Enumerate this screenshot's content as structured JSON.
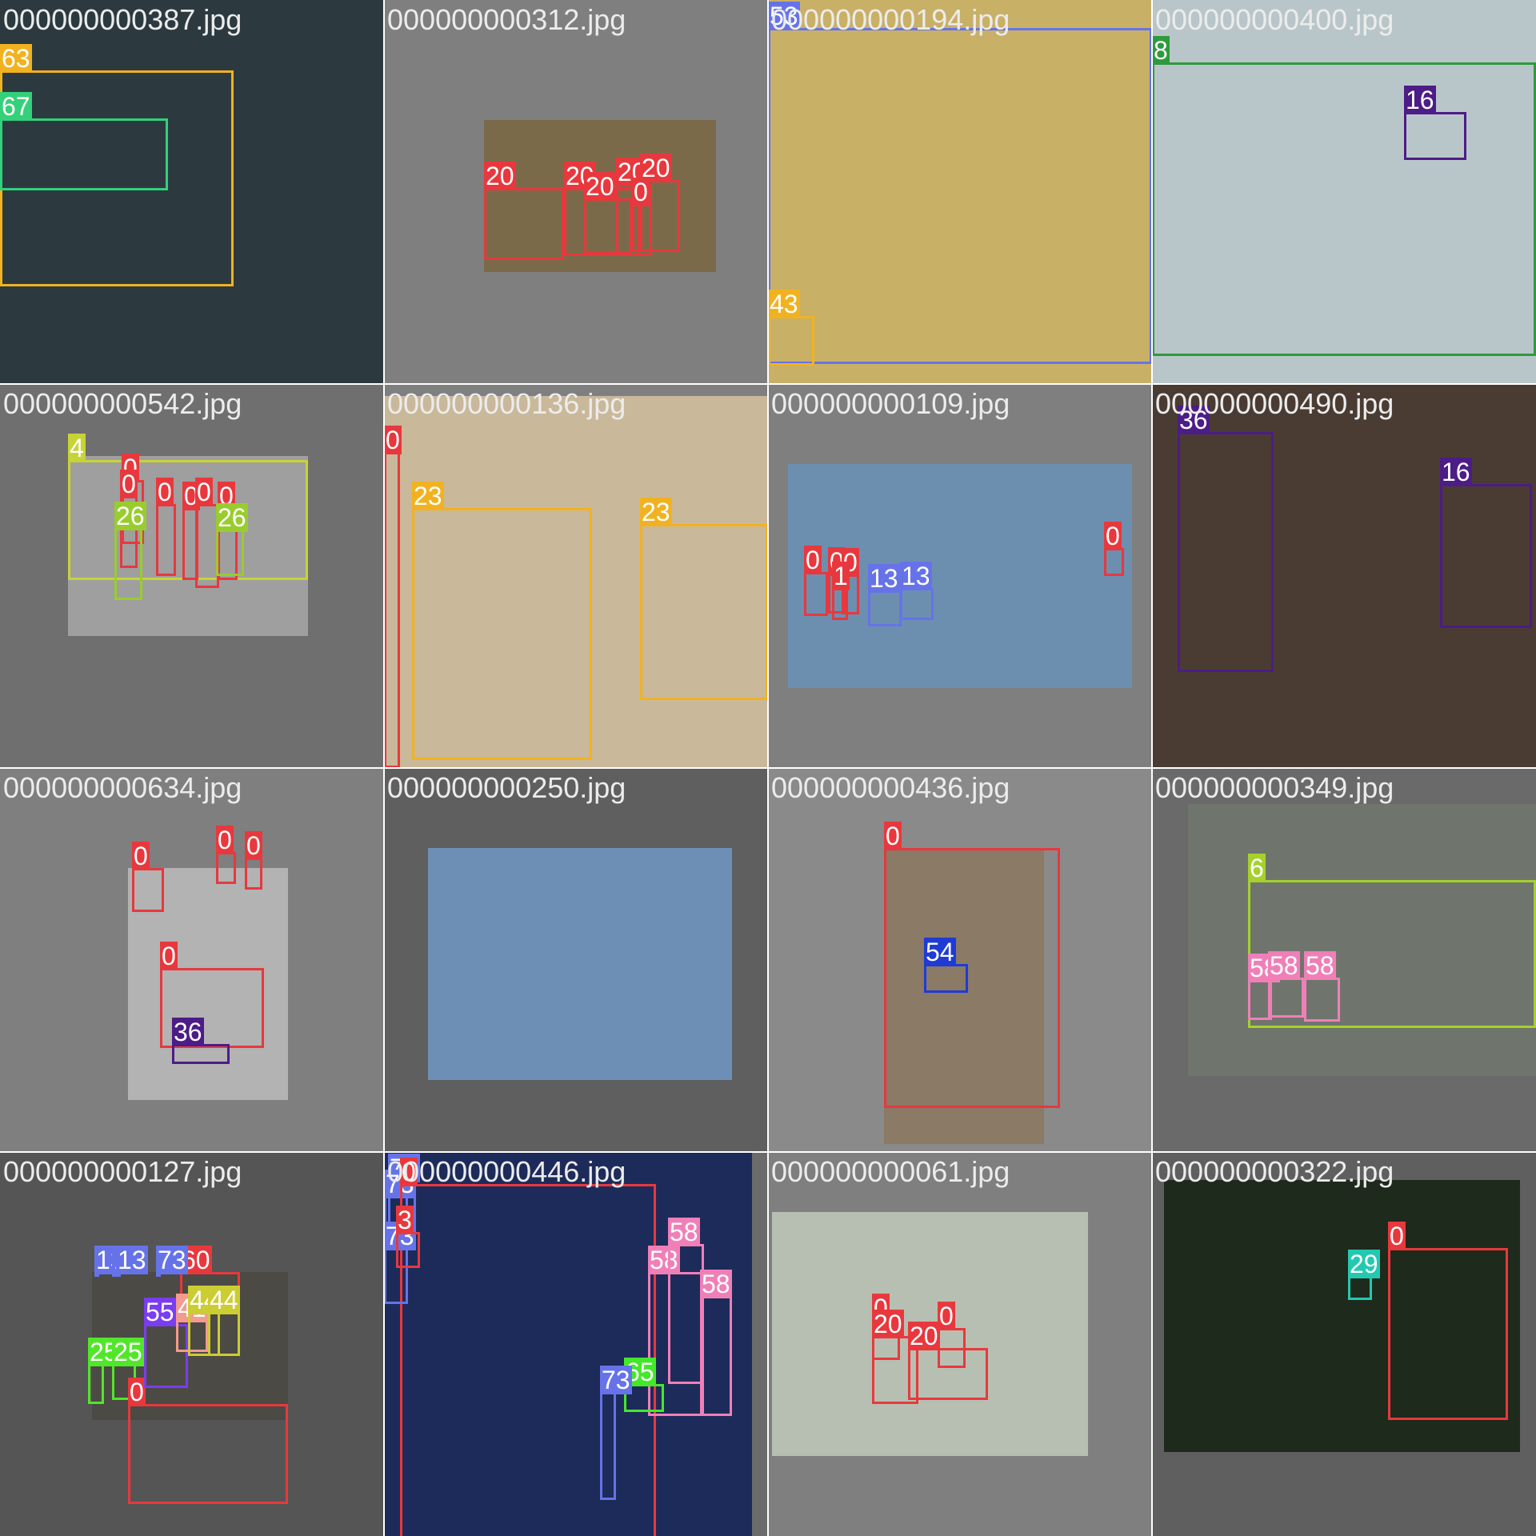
{
  "title": "",
  "colors": {
    "cls_0": "#e8383d",
    "cls_4": "#c8d335",
    "cls_6": "#a6d12c",
    "cls_8": "#2e9a3b",
    "cls_13": "#6673e8",
    "cls_16": "#4c1c87",
    "cls_20": "#e8383d",
    "cls_23": "#f2b21f",
    "cls_25": "#52e62a",
    "cls_26": "#99cc2e",
    "cls_29": "#22c9b1",
    "cls_36": "#4c1c87",
    "cls_41": "#f59a8e",
    "cls_43": "#f2b21f",
    "cls_44": "#cccc33",
    "cls_53": "#6673e8",
    "cls_54": "#1f3bd4",
    "cls_55": "#7a3df0",
    "cls_58": "#f07fb8",
    "cls_60": "#e8383d",
    "cls_63": "#f2b21f",
    "cls_65": "#44e82a",
    "cls_67": "#33d17a",
    "cls_73": "#6673e8"
  },
  "tiles": [
    {
      "name": "000000000387.jpg",
      "bg": "#2c3a40",
      "labels": [
        "63",
        "67"
      ]
    },
    {
      "name": "000000000312.jpg",
      "bg": "#7b6a4a",
      "labels": [
        "20",
        "20",
        "20",
        "20",
        "20",
        "0"
      ]
    },
    {
      "name": "000000000194.jpg",
      "bg": "#c9b067",
      "labels": [
        "53",
        "43"
      ]
    },
    {
      "name": "000000000400.jpg",
      "bg": "#b9c6c9",
      "labels": [
        "8",
        "16"
      ]
    },
    {
      "name": "000000000542.jpg",
      "bg": "#9f9f9f",
      "labels": [
        "4",
        "0",
        "0",
        "0",
        "0",
        "0",
        "0",
        "26",
        "26"
      ]
    },
    {
      "name": "000000000136.jpg",
      "bg": "#c9b89a",
      "labels": [
        "0",
        "23",
        "23"
      ]
    },
    {
      "name": "000000000109.jpg",
      "bg": "#6c8fb0",
      "labels": [
        "0",
        "0",
        "0",
        "1",
        "13",
        "13",
        "0"
      ]
    },
    {
      "name": "000000000490.jpg",
      "bg": "#4a3c33",
      "labels": [
        "36",
        "16"
      ]
    },
    {
      "name": "000000000634.jpg",
      "bg": "#b3b3b3",
      "labels": [
        "0",
        "0",
        "0",
        "0",
        "36"
      ]
    },
    {
      "name": "000000000250.jpg",
      "bg": "#6e8fb5",
      "labels": []
    },
    {
      "name": "000000000436.jpg",
      "bg": "#8a7a66",
      "labels": [
        "0",
        "54"
      ]
    },
    {
      "name": "000000000349.jpg",
      "bg": "#6f756c",
      "labels": [
        "6",
        "58",
        "58",
        "58"
      ]
    },
    {
      "name": "000000000127.jpg",
      "bg": "#4b4a44",
      "labels": [
        "25",
        "25",
        "0",
        "13",
        "13",
        "13",
        "60",
        "73",
        "55",
        "41",
        "44",
        "44"
      ]
    },
    {
      "name": "000000000446.jpg",
      "bg": "#1d2b5a",
      "labels": [
        "73",
        "73",
        "0",
        "73",
        "3",
        "58",
        "58",
        "58",
        "65",
        "73"
      ]
    },
    {
      "name": "000000000061.jpg",
      "bg": "#b7bfb2",
      "labels": [
        "0",
        "0",
        "20",
        "20"
      ]
    },
    {
      "name": "000000000322.jpg",
      "bg": "#1e2a1c",
      "labels": [
        "0",
        "29"
      ]
    }
  ]
}
